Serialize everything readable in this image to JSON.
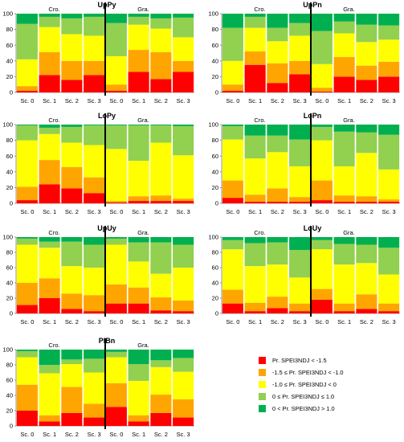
{
  "colors": {
    "cat1": "#FF0000",
    "cat2": "#FFA500",
    "cat3": "#FFFF00",
    "cat4": "#92D050",
    "cat5": "#00B050",
    "divider": "#000000",
    "axis": "#808080",
    "grid": "#d9d9d9"
  },
  "legend": [
    "Pr. SPEI3NDJ < -1.5",
    "-1.5 ≤ Pr. SPEI3NDJ < -1.0",
    "-1.0 ≤ Pr. SPEI3NDJ < 0",
    "0 ≤ Pr. SPEI3NDJ ≤ 1.0",
    "0 < Pr. SPEI3NDJ > 1.0"
  ],
  "chart_data": [
    {
      "type": "bar",
      "stacked": true,
      "title": "UpPy",
      "group_labels": [
        "Cro.",
        "Gra."
      ],
      "categories": [
        "Sc. 0",
        "Sc. 1",
        "Sc. 2",
        "Sc. 3",
        "Sc. 0",
        "Sc. 1",
        "Sc. 2",
        "Sc. 3"
      ],
      "ylim": [
        0,
        100
      ],
      "yticks": [
        "0",
        "20",
        "40",
        "60",
        "80",
        "100"
      ],
      "series": [
        {
          "values": [
            2,
            22,
            16,
            22,
            2,
            26,
            17,
            26
          ]
        },
        {
          "values": [
            6,
            29,
            24,
            18,
            8,
            28,
            34,
            14
          ]
        },
        {
          "values": [
            34,
            32,
            34,
            32,
            36,
            32,
            30,
            30
          ]
        },
        {
          "values": [
            45,
            13,
            20,
            24,
            42,
            10,
            13,
            25
          ]
        },
        {
          "values": [
            13,
            4,
            6,
            4,
            12,
            4,
            6,
            5
          ]
        }
      ]
    },
    {
      "type": "bar",
      "stacked": true,
      "title": "UpPn",
      "group_labels": [
        "Cro.",
        "Gra."
      ],
      "categories": [
        "Sc. 0",
        "Sc. 1",
        "Sc. 2",
        "Sc. 3",
        "Sc. 0",
        "Sc. 1",
        "Sc. 2",
        "Sc. 3"
      ],
      "ylim": [
        0,
        100
      ],
      "yticks": [
        "0",
        "20",
        "40",
        "60",
        "80",
        "100"
      ],
      "series": [
        {
          "values": [
            2,
            35,
            12,
            23,
            1,
            20,
            16,
            20
          ]
        },
        {
          "values": [
            8,
            17,
            25,
            17,
            5,
            25,
            18,
            19
          ]
        },
        {
          "values": [
            30,
            30,
            28,
            32,
            30,
            30,
            30,
            28
          ]
        },
        {
          "values": [
            42,
            14,
            17,
            16,
            42,
            15,
            22,
            18
          ]
        },
        {
          "values": [
            18,
            4,
            18,
            12,
            22,
            10,
            14,
            15
          ]
        }
      ]
    },
    {
      "type": "bar",
      "stacked": true,
      "title": "LoPy",
      "group_labels": [
        "Cro.",
        "Gra."
      ],
      "categories": [
        "Sc. 0",
        "Sc. 1",
        "Sc. 2",
        "Sc. 3",
        "Sc. 0",
        "Sc. 1",
        "Sc. 2",
        "Sc. 3"
      ],
      "ylim": [
        0,
        100
      ],
      "yticks": [
        "0",
        "20",
        "40",
        "60",
        "80",
        "100"
      ],
      "series": [
        {
          "values": [
            4,
            24,
            19,
            13,
            1,
            3,
            3,
            3
          ]
        },
        {
          "values": [
            17,
            31,
            27,
            20,
            2,
            6,
            7,
            3
          ]
        },
        {
          "values": [
            59,
            33,
            31,
            41,
            66,
            45,
            67,
            55
          ]
        },
        {
          "values": [
            19,
            8,
            20,
            25,
            30,
            45,
            22,
            37
          ]
        },
        {
          "values": [
            1,
            4,
            3,
            1,
            1,
            1,
            1,
            2
          ]
        }
      ]
    },
    {
      "type": "bar",
      "stacked": true,
      "title": "LoPn",
      "group_labels": [
        "Cro.",
        "Gra."
      ],
      "categories": [
        "Sc. 0",
        "Sc. 1",
        "Sc. 2",
        "Sc. 3",
        "Sc. 0",
        "Sc. 1",
        "Sc. 2",
        "Sc. 3"
      ],
      "ylim": [
        0,
        100
      ],
      "yticks": [
        "0",
        "20",
        "40",
        "60",
        "80",
        "100"
      ],
      "series": [
        {
          "values": [
            7,
            2,
            2,
            2,
            4,
            2,
            2,
            2
          ]
        },
        {
          "values": [
            22,
            9,
            17,
            6,
            25,
            8,
            7,
            3
          ]
        },
        {
          "values": [
            52,
            46,
            46,
            39,
            51,
            37,
            55,
            38
          ]
        },
        {
          "values": [
            17,
            29,
            21,
            34,
            17,
            44,
            26,
            44
          ]
        },
        {
          "values": [
            2,
            14,
            14,
            19,
            3,
            9,
            10,
            13
          ]
        }
      ]
    },
    {
      "type": "bar",
      "stacked": true,
      "title": "UpUy",
      "group_labels": [
        "Cro.",
        "Gra."
      ],
      "categories": [
        "Sc. 0",
        "Sc. 1",
        "Sc. 2",
        "Sc. 3",
        "Sc. 0",
        "Sc. 1",
        "Sc. 2",
        "Sc. 3"
      ],
      "ylim": [
        0,
        100
      ],
      "yticks": [
        "0",
        "20",
        "40",
        "60",
        "80",
        "100"
      ],
      "series": [
        {
          "values": [
            11,
            20,
            6,
            3,
            13,
            13,
            4,
            3
          ]
        },
        {
          "values": [
            29,
            26,
            20,
            21,
            25,
            21,
            17,
            14
          ]
        },
        {
          "values": [
            50,
            40,
            36,
            36,
            52,
            34,
            31,
            43
          ]
        },
        {
          "values": [
            8,
            8,
            32,
            30,
            8,
            25,
            41,
            30
          ]
        },
        {
          "values": [
            2,
            6,
            6,
            10,
            2,
            7,
            7,
            10
          ]
        }
      ]
    },
    {
      "type": "bar",
      "stacked": true,
      "title": "LoUy",
      "group_labels": [
        "Cro.",
        "Gra."
      ],
      "categories": [
        "Sc. 0",
        "Sc. 1",
        "Sc. 2",
        "Sc. 3",
        "Sc. 0",
        "Sc. 1",
        "Sc. 2",
        "Sc. 3"
      ],
      "ylim": [
        0,
        100
      ],
      "yticks": [
        "0",
        "20",
        "40",
        "60",
        "80",
        "100"
      ],
      "series": [
        {
          "values": [
            13,
            3,
            7,
            3,
            18,
            3,
            6,
            3
          ]
        },
        {
          "values": [
            18,
            11,
            15,
            10,
            14,
            10,
            19,
            10
          ]
        },
        {
          "values": [
            53,
            48,
            42,
            34,
            52,
            51,
            41,
            38
          ]
        },
        {
          "values": [
            12,
            30,
            29,
            36,
            12,
            27,
            24,
            35
          ]
        },
        {
          "values": [
            4,
            8,
            7,
            17,
            4,
            9,
            10,
            14
          ]
        }
      ]
    },
    {
      "type": "bar",
      "stacked": true,
      "title": "PlBn",
      "group_labels": [
        "Cro.",
        "Gra."
      ],
      "categories": [
        "Sc. 0",
        "Sc. 1",
        "Sc. 2",
        "Sc. 3",
        "Sc. 0",
        "Sc. 1",
        "Sc. 2",
        "Sc. 3"
      ],
      "ylim": [
        0,
        100
      ],
      "yticks": [
        "0",
        "20",
        "40",
        "60",
        "80",
        "100"
      ],
      "series": [
        {
          "values": [
            20,
            6,
            17,
            11,
            25,
            6,
            17,
            11
          ]
        },
        {
          "values": [
            34,
            8,
            34,
            18,
            31,
            8,
            24,
            24
          ]
        },
        {
          "values": [
            36,
            55,
            30,
            41,
            34,
            45,
            36,
            36
          ]
        },
        {
          "values": [
            8,
            11,
            6,
            18,
            7,
            22,
            9,
            18
          ]
        },
        {
          "values": [
            2,
            20,
            13,
            12,
            3,
            19,
            14,
            11
          ]
        }
      ]
    }
  ]
}
